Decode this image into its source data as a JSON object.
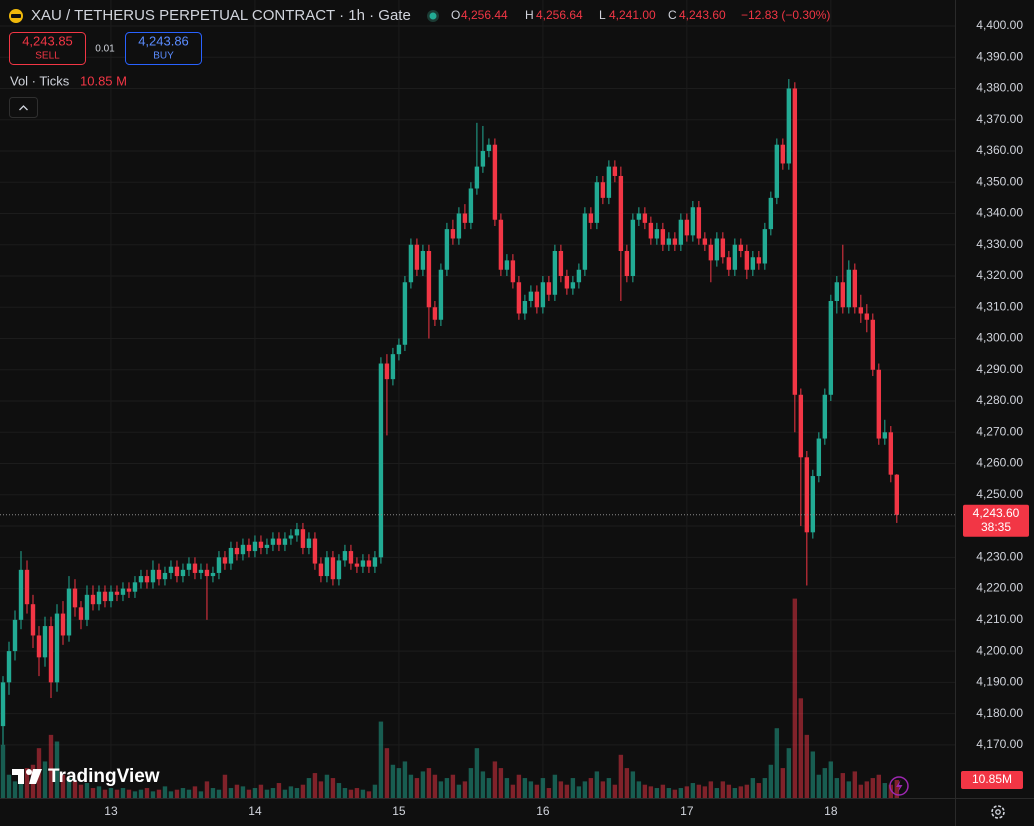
{
  "chart_data": {
    "type": "candlestick",
    "title": "XAU / TETHERUS PERPETUAL CONTRACT · 1h · Gate",
    "ohlc_legend": {
      "o_label": "O",
      "o": "4,256.44",
      "h_label": "H",
      "h": "4,256.64",
      "l_label": "L",
      "l": "4,241.00",
      "c_label": "C",
      "c": "4,243.60",
      "change": "−12.83 (−0.30%)"
    },
    "trade": {
      "sell_price": "4,243.85",
      "sell": "SELL",
      "quantity": "0.01",
      "buy_price": "4,243.86",
      "buy": "BUY"
    },
    "volume_legend": {
      "name": "Vol · Ticks",
      "value": "10.85 M"
    },
    "last_price_label": "4,243.60",
    "countdown": "38:35",
    "volume_axis_label": "10.85M",
    "brand": "TradingView",
    "up_color": "#22ab94",
    "down_color": "#f23645",
    "volume_opacity": 0.5,
    "grid": true,
    "x": [
      0,
      1,
      2,
      3,
      4,
      5,
      6,
      7,
      8,
      9,
      10,
      11,
      12,
      13,
      14,
      15,
      16,
      17,
      18,
      19,
      20,
      21,
      22,
      23,
      24,
      25,
      26,
      27,
      28,
      29,
      30,
      31,
      32,
      33,
      34,
      35,
      36,
      37,
      38,
      39,
      40,
      41,
      42,
      43,
      44,
      45,
      46,
      47,
      48,
      49,
      50,
      51,
      52,
      53,
      54,
      55,
      56,
      57,
      58,
      59,
      60,
      61,
      62,
      63,
      64,
      65,
      66,
      67,
      68,
      69,
      70,
      71,
      72,
      73,
      74,
      75,
      76,
      77,
      78,
      79,
      80,
      81,
      82,
      83,
      84,
      85,
      86,
      87,
      88,
      89,
      90,
      91,
      92,
      93,
      94,
      95,
      96,
      97,
      98,
      99,
      100,
      101,
      102,
      103,
      104,
      105,
      106,
      107,
      108,
      109,
      110,
      111,
      112,
      113,
      114,
      115,
      116,
      117,
      118,
      119,
      120,
      121,
      122,
      123,
      124,
      125,
      126,
      127,
      128,
      129,
      130,
      131,
      132,
      133,
      134,
      135,
      136,
      137,
      138,
      139,
      140,
      141,
      142,
      143,
      144,
      145,
      146,
      147,
      148,
      149
    ],
    "open": [
      4176,
      4190,
      4200,
      4210,
      4226,
      4215,
      4205,
      4198,
      4208,
      4190,
      4212,
      4205,
      4220,
      4214,
      4210,
      4218,
      4215,
      4219,
      4216,
      4219,
      4218,
      4220,
      4219,
      4222,
      4224,
      4222,
      4226,
      4223,
      4225,
      4227,
      4224,
      4226,
      4228,
      4225,
      4226,
      4224,
      4225,
      4230,
      4228,
      4233,
      4231,
      4234,
      4232,
      4235,
      4233,
      4234,
      4236,
      4234,
      4236,
      4237,
      4239,
      4233,
      4236,
      4228,
      4224,
      4230,
      4223,
      4229,
      4232,
      4228,
      4227,
      4229,
      4227,
      4230,
      4292,
      4287,
      4295,
      4298,
      4318,
      4330,
      4322,
      4328,
      4310,
      4306,
      4322,
      4335,
      4332,
      4340,
      4337,
      4348,
      4355,
      4360,
      4362,
      4338,
      4322,
      4325,
      4318,
      4308,
      4312,
      4315,
      4310,
      4318,
      4314,
      4328,
      4320,
      4316,
      4318,
      4322,
      4340,
      4337,
      4350,
      4345,
      4355,
      4352,
      4328,
      4320,
      4338,
      4340,
      4337,
      4332,
      4335,
      4330,
      4332,
      4330,
      4338,
      4333,
      4342,
      4332,
      4330,
      4325,
      4332,
      4326,
      4322,
      4330,
      4328,
      4322,
      4326,
      4324,
      4335,
      4345,
      4362,
      4356,
      4380,
      4282,
      4262,
      4238,
      4256,
      4268,
      4282,
      4312,
      4318,
      4310,
      4322,
      4310,
      4308,
      4306,
      4290,
      4268,
      4270,
      4256.44
    ],
    "high": [
      4192,
      4203,
      4213,
      4232,
      4229,
      4218,
      4208,
      4211,
      4211,
      4215,
      4216,
      4224,
      4223,
      4216,
      4221,
      4221,
      4221,
      4221,
      4221,
      4221,
      4222,
      4222,
      4224,
      4226,
      4226,
      4229,
      4228,
      4227,
      4229,
      4229,
      4228,
      4230,
      4230,
      4228,
      4228,
      4227,
      4232,
      4232,
      4235,
      4235,
      4236,
      4236,
      4237,
      4237,
      4236,
      4238,
      4238,
      4238,
      4239,
      4241,
      4241,
      4238,
      4238,
      4230,
      4232,
      4232,
      4231,
      4234,
      4234,
      4230,
      4231,
      4231,
      4232,
      4294,
      4295,
      4297,
      4300,
      4320,
      4332,
      4332,
      4330,
      4330,
      4312,
      4324,
      4337,
      4338,
      4342,
      4343,
      4350,
      4369,
      4368,
      4364,
      4364,
      4340,
      4327,
      4327,
      4320,
      4314,
      4317,
      4317,
      4320,
      4320,
      4330,
      4330,
      4322,
      4320,
      4324,
      4342,
      4342,
      4352,
      4352,
      4357,
      4357,
      4355,
      4330,
      4340,
      4342,
      4342,
      4339,
      4337,
      4337,
      4334,
      4334,
      4340,
      4340,
      4344,
      4344,
      4334,
      4332,
      4334,
      4334,
      4328,
      4332,
      4332,
      4330,
      4328,
      4328,
      4337,
      4347,
      4364,
      4364,
      4383,
      4382,
      4284,
      4264,
      4258,
      4270,
      4284,
      4314,
      4320,
      4330,
      4325,
      4324,
      4314,
      4311,
      4308,
      4292,
      4274,
      4272,
      4256.64
    ],
    "low": [
      4170,
      4186,
      4197,
      4207,
      4212,
      4201,
      4192,
      4195,
      4185,
      4187,
      4202,
      4203,
      4211,
      4207,
      4208,
      4213,
      4213,
      4214,
      4214,
      4216,
      4216,
      4217,
      4217,
      4220,
      4220,
      4220,
      4221,
      4221,
      4223,
      4222,
      4222,
      4224,
      4223,
      4223,
      4210,
      4222,
      4223,
      4226,
      4226,
      4229,
      4229,
      4230,
      4230,
      4231,
      4231,
      4232,
      4232,
      4232,
      4234,
      4235,
      4231,
      4231,
      4226,
      4222,
      4222,
      4221,
      4221,
      4227,
      4226,
      4225,
      4225,
      4225,
      4225,
      4228,
      4269,
      4285,
      4293,
      4296,
      4316,
      4320,
      4320,
      4300,
      4304,
      4304,
      4320,
      4330,
      4330,
      4335,
      4335,
      4346,
      4353,
      4358,
      4336,
      4320,
      4320,
      4316,
      4306,
      4306,
      4310,
      4308,
      4308,
      4312,
      4312,
      4318,
      4314,
      4314,
      4316,
      4320,
      4335,
      4335,
      4343,
      4343,
      4350,
      4312,
      4318,
      4318,
      4336,
      4335,
      4330,
      4330,
      4328,
      4328,
      4328,
      4328,
      4331,
      4331,
      4330,
      4328,
      4318,
      4323,
      4324,
      4320,
      4320,
      4326,
      4319,
      4320,
      4322,
      4322,
      4333,
      4343,
      4354,
      4354,
      4270,
      4240,
      4221,
      4236,
      4254,
      4266,
      4280,
      4308,
      4308,
      4308,
      4308,
      4305,
      4302,
      4288,
      4266,
      4266,
      4254,
      4241
    ],
    "close": [
      4190,
      4200,
      4210,
      4226,
      4215,
      4205,
      4198,
      4208,
      4190,
      4212,
      4205,
      4220,
      4214,
      4210,
      4218,
      4215,
      4219,
      4216,
      4219,
      4218,
      4220,
      4219,
      4222,
      4224,
      4222,
      4226,
      4223,
      4225,
      4227,
      4224,
      4226,
      4228,
      4225,
      4226,
      4224,
      4225,
      4230,
      4228,
      4233,
      4231,
      4234,
      4232,
      4235,
      4233,
      4234,
      4236,
      4234,
      4236,
      4237,
      4239,
      4233,
      4236,
      4228,
      4224,
      4230,
      4223,
      4229,
      4232,
      4228,
      4227,
      4229,
      4227,
      4230,
      4292,
      4287,
      4295,
      4298,
      4318,
      4330,
      4322,
      4328,
      4310,
      4306,
      4322,
      4335,
      4332,
      4340,
      4337,
      4348,
      4355,
      4360,
      4362,
      4338,
      4322,
      4325,
      4318,
      4308,
      4312,
      4315,
      4310,
      4318,
      4314,
      4328,
      4320,
      4316,
      4318,
      4322,
      4340,
      4337,
      4350,
      4345,
      4355,
      4352,
      4328,
      4320,
      4338,
      4340,
      4337,
      4332,
      4335,
      4330,
      4332,
      4330,
      4338,
      4333,
      4342,
      4332,
      4330,
      4325,
      4332,
      4326,
      4322,
      4330,
      4328,
      4322,
      4326,
      4324,
      4335,
      4345,
      4362,
      4356,
      4380,
      4282,
      4262,
      4238,
      4256,
      4268,
      4282,
      4312,
      4318,
      4310,
      4322,
      4310,
      4308,
      4306,
      4290,
      4268,
      4270,
      4256.44,
      4243.6
    ],
    "volume": [
      32,
      14,
      10,
      16,
      18,
      20,
      30,
      22,
      38,
      34,
      14,
      12,
      10,
      8,
      9,
      6,
      7,
      5,
      6,
      5,
      6,
      5,
      4,
      5,
      6,
      4,
      5,
      7,
      4,
      5,
      6,
      5,
      7,
      4,
      10,
      6,
      5,
      14,
      6,
      8,
      7,
      5,
      6,
      8,
      5,
      6,
      9,
      5,
      7,
      6,
      8,
      12,
      15,
      10,
      14,
      12,
      9,
      6,
      5,
      6,
      5,
      4,
      8,
      46,
      30,
      20,
      18,
      22,
      14,
      12,
      16,
      18,
      14,
      10,
      12,
      14,
      8,
      10,
      18,
      30,
      16,
      12,
      22,
      18,
      12,
      8,
      14,
      12,
      10,
      8,
      12,
      6,
      14,
      10,
      8,
      12,
      7,
      10,
      12,
      16,
      10,
      12,
      8,
      26,
      18,
      16,
      10,
      8,
      7,
      6,
      8,
      6,
      5,
      6,
      7,
      9,
      8,
      7,
      10,
      6,
      10,
      8,
      6,
      7,
      8,
      12,
      9,
      12,
      20,
      42,
      18,
      30,
      120,
      60,
      38,
      28,
      14,
      18,
      22,
      12,
      15,
      10,
      16,
      8,
      10,
      12,
      14,
      9,
      8,
      10.85
    ],
    "xlim": [
      -0.5,
      158.7
    ],
    "xticks": [
      {
        "value": 18,
        "label": "13"
      },
      {
        "value": 42,
        "label": "14"
      },
      {
        "value": 66,
        "label": "15"
      },
      {
        "value": 90,
        "label": "16"
      },
      {
        "value": 114,
        "label": "17"
      },
      {
        "value": 138,
        "label": "18"
      }
    ],
    "ylim": [
      4153,
      4408.3
    ],
    "yticks": [
      {
        "value": 4170,
        "label": "4,170.00"
      },
      {
        "value": 4180,
        "label": "4,180.00"
      },
      {
        "value": 4190,
        "label": "4,190.00"
      },
      {
        "value": 4200,
        "label": "4,200.00"
      },
      {
        "value": 4210,
        "label": "4,210.00"
      },
      {
        "value": 4220,
        "label": "4,220.00"
      },
      {
        "value": 4230,
        "label": "4,230.00"
      },
      {
        "value": 4240,
        "label": "4,240.00"
      },
      {
        "value": 4250,
        "label": "4,250.00"
      },
      {
        "value": 4260,
        "label": "4,260.00"
      },
      {
        "value": 4270,
        "label": "4,270.00"
      },
      {
        "value": 4280,
        "label": "4,280.00"
      },
      {
        "value": 4290,
        "label": "4,290.00"
      },
      {
        "value": 4300,
        "label": "4,300.00"
      },
      {
        "value": 4310,
        "label": "4,310.00"
      },
      {
        "value": 4320,
        "label": "4,320.00"
      },
      {
        "value": 4330,
        "label": "4,330.00"
      },
      {
        "value": 4340,
        "label": "4,340.00"
      },
      {
        "value": 4350,
        "label": "4,350.00"
      },
      {
        "value": 4360,
        "label": "4,360.00"
      },
      {
        "value": 4370,
        "label": "4,370.00"
      },
      {
        "value": 4380,
        "label": "4,380.00"
      },
      {
        "value": 4390,
        "label": "4,390.00"
      },
      {
        "value": 4400,
        "label": "4,400.00"
      }
    ],
    "volume_ylim": [
      0,
      130
    ]
  }
}
